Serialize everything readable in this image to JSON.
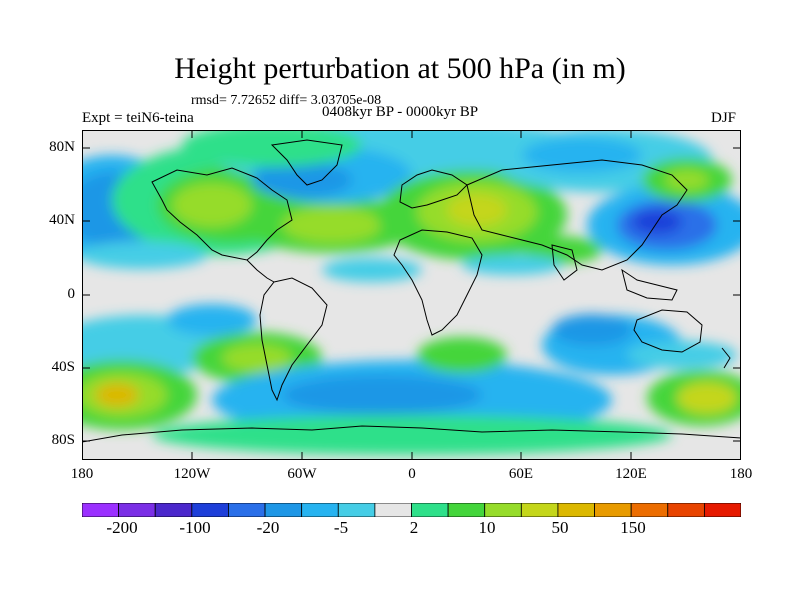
{
  "title": "Height perturbation at 500 hPa (in m)",
  "stats": "rmsd= 7.72652 diff= 3.03705e-08",
  "experiment": "Expt = teiN6-teina",
  "period": "0408kyr BP - 0000kyr BP",
  "season": "DJF",
  "lat_labels": [
    "80N",
    "40N",
    "0",
    "40S",
    "80S"
  ],
  "lon_labels": [
    "180",
    "120W",
    "60W",
    "0",
    "60E",
    "120E",
    "180"
  ],
  "colorbar": {
    "colors": [
      "#9b30ff",
      "#7b2fe6",
      "#4b28cc",
      "#1e3fd9",
      "#2a6fe8",
      "#1f97e6",
      "#27b3f0",
      "#45cde6",
      "#e6e6e6",
      "#2ee08a",
      "#44d53b",
      "#96dc2a",
      "#c4d61a",
      "#dcb800",
      "#e89b00",
      "#ec6d00",
      "#e84400",
      "#e61a00"
    ],
    "labels": [
      "-200",
      "-100",
      "-20",
      "-5",
      "2",
      "10",
      "50",
      "150"
    ]
  },
  "map_fields": {
    "background": "#e6e6e6",
    "coastline_color": "#000000"
  }
}
